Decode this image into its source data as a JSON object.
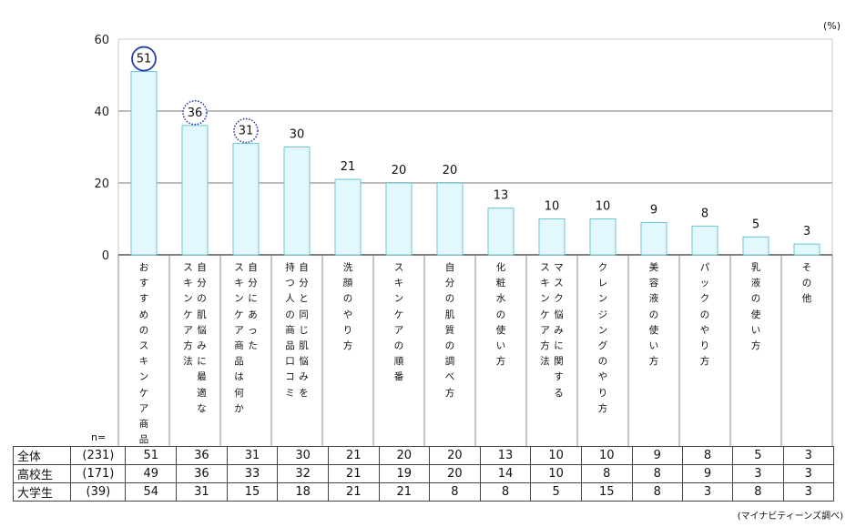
{
  "chart_data": {
    "type": "bar",
    "unit_label": "(%)",
    "ylim": [
      0,
      60
    ],
    "yticks": [
      0,
      20,
      40,
      60
    ],
    "grid": true,
    "categories": [
      "おすすめのスキンケア商品",
      "自分の肌悩みに最適なスキンケア方法",
      "自分にあったスキンケア商品は何か",
      "自分と同じ肌悩みを持つ人の商品口コミ",
      "洗顔のやり方",
      "スキンケアの順番",
      "自分の肌質の調べ方",
      "化粧水の使い方",
      "マスク悩みに関するスキンケア方法",
      "クレンジングのやり方",
      "美容液の使い方",
      "パックのやり方",
      "乳液の使い方",
      "その他"
    ],
    "label_columns": [
      [
        "おすすめのスキンケア商品"
      ],
      [
        "自分の肌悩みに最適な",
        "スキンケア方法"
      ],
      [
        "自分にあった",
        "スキンケア商品は何か"
      ],
      [
        "自分と同じ肌悩みを",
        "持つ人の商品口コミ"
      ],
      [
        "洗顔のやり方"
      ],
      [
        "スキンケアの順番"
      ],
      [
        "自分の肌質の調べ方"
      ],
      [
        "化粧水の使い方"
      ],
      [
        "マスク悩みに関する",
        "スキンケア方法"
      ],
      [
        "クレンジングのやり方"
      ],
      [
        "美容液の使い方"
      ],
      [
        "パックのやり方"
      ],
      [
        "乳液の使い方"
      ],
      [
        "その他"
      ]
    ],
    "values": [
      51,
      36,
      31,
      30,
      21,
      20,
      20,
      13,
      10,
      10,
      9,
      8,
      5,
      3
    ],
    "highlighted": [
      {
        "index": 0,
        "style": "solid"
      },
      {
        "index": 1,
        "style": "dotted"
      },
      {
        "index": 2,
        "style": "dotted"
      }
    ],
    "bar_color": "#e3f8fc",
    "bar_stroke": "#68c6da",
    "circle_color": "#2a3fb0",
    "table": {
      "n_label": "n=",
      "rows": [
        {
          "label": "全体",
          "n": "(231)",
          "values": [
            51,
            36,
            31,
            30,
            21,
            20,
            20,
            13,
            10,
            10,
            9,
            8,
            5,
            3
          ]
        },
        {
          "label": "高校生",
          "n": "(171)",
          "values": [
            49,
            36,
            33,
            32,
            21,
            19,
            20,
            14,
            10,
            8,
            8,
            9,
            3,
            3
          ]
        },
        {
          "label": "大学生",
          "n": "(39)",
          "values": [
            54,
            31,
            15,
            18,
            21,
            21,
            8,
            8,
            5,
            15,
            8,
            3,
            8,
            3
          ]
        }
      ]
    },
    "source": "(マイナビティーンズ調べ)"
  }
}
